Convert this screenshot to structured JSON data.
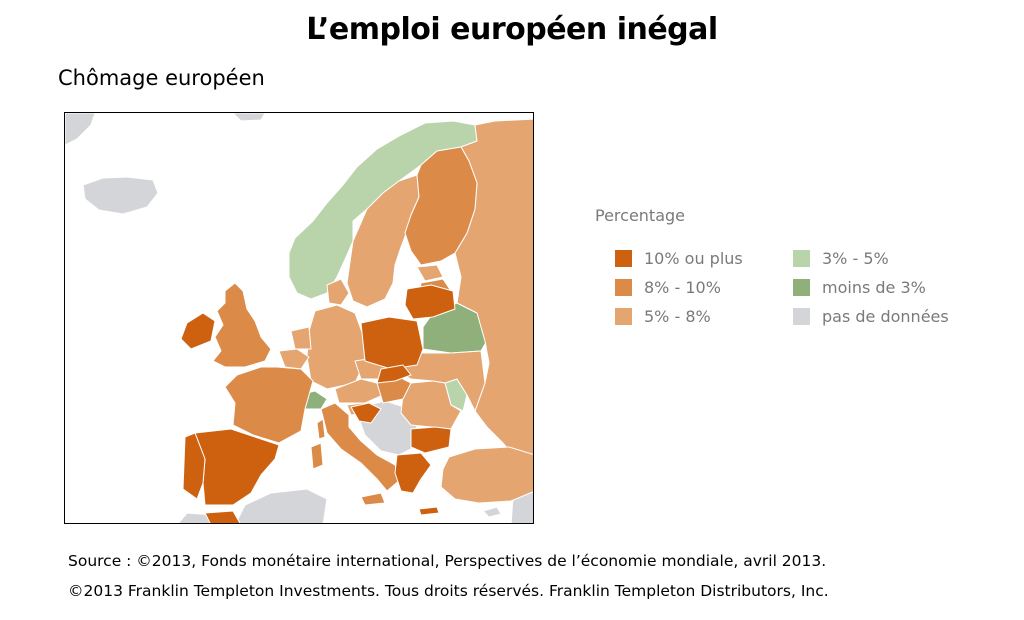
{
  "title": "L’emploi européen inégal",
  "subtitle": "Chômage européen",
  "colors": {
    "c10": "#cd6110",
    "c8": "#db8a48",
    "c5": "#e4a571",
    "c3": "#b9d3aa",
    "clt3": "#8fb07a",
    "nodata": "#d4d5d8",
    "sea": "#ffffff",
    "border": "#ffffff"
  },
  "legend": {
    "title": "Percentage",
    "items": [
      {
        "label": "10% ou plus",
        "color": "#cd6110"
      },
      {
        "label": "8% - 10%",
        "color": "#db8a48"
      },
      {
        "label": "5% - 8%",
        "color": "#e4a571"
      },
      {
        "label": "3% - 5%",
        "color": "#b9d3aa"
      },
      {
        "label": "moins de 3%",
        "color": "#8fb07a"
      },
      {
        "label": "pas de données",
        "color": "#d4d5d8"
      }
    ]
  },
  "source": {
    "line1": "Source : ©2013, Fonds monétaire international, Perspectives de l’économie mondiale, avril 2013.",
    "line2": "©2013 Franklin Templeton Investments. Tous droits réservés. Franklin Templeton Distributors, Inc."
  }
}
